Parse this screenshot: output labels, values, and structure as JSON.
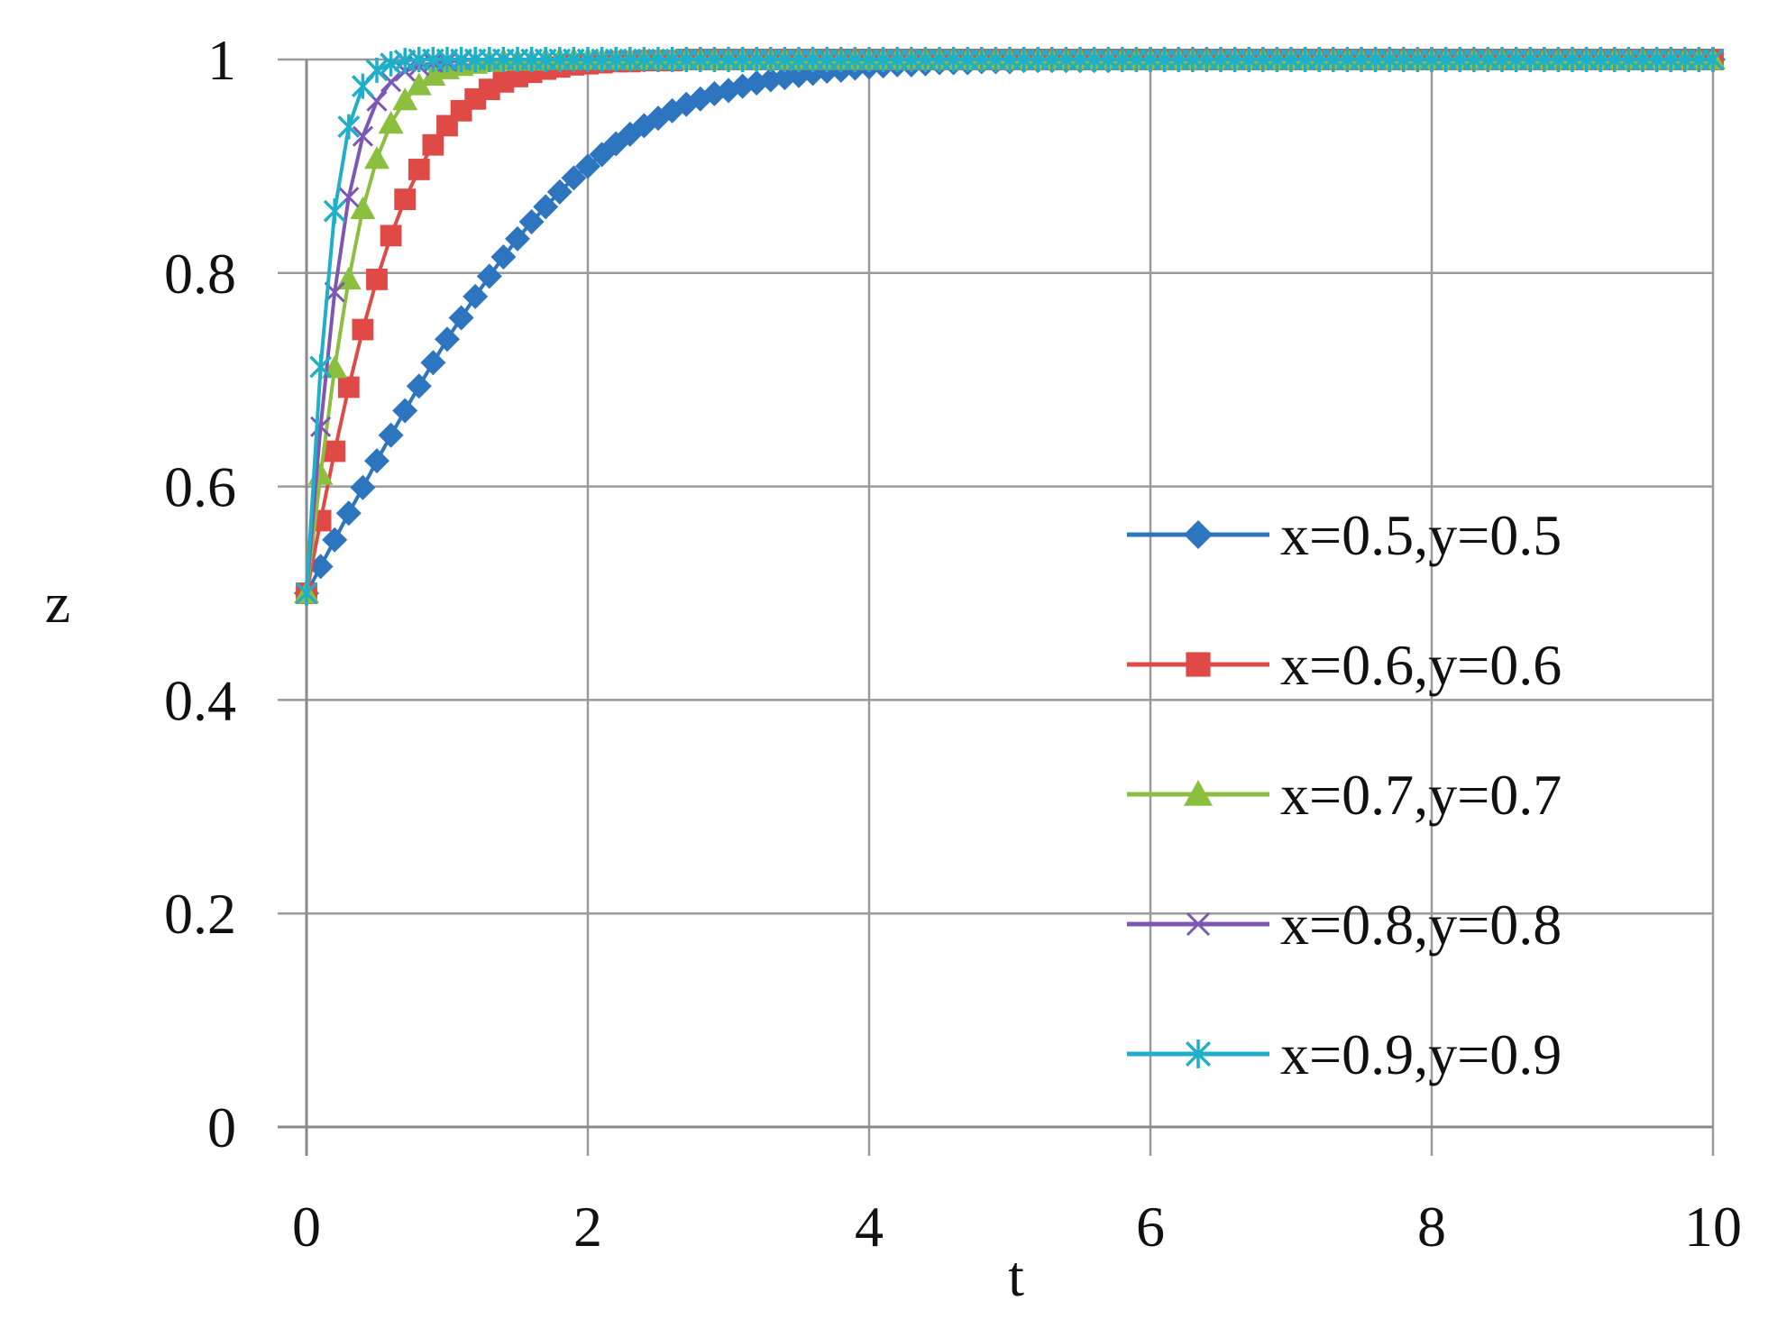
{
  "chart_data": {
    "type": "line",
    "title": "",
    "xlabel": "t",
    "ylabel": "z",
    "xlim": [
      0,
      10
    ],
    "ylim": [
      0,
      1
    ],
    "x_ticks": [
      "0",
      "2",
      "4",
      "6",
      "8",
      "10"
    ],
    "y_ticks": [
      "0",
      "0.2",
      "0.4",
      "0.6",
      "0.8",
      "1"
    ],
    "grid": true,
    "legend_position": "right",
    "x": [
      0,
      0.1,
      0.2,
      0.3,
      0.4,
      0.5,
      0.6,
      0.7,
      0.8,
      0.9,
      1.0,
      1.1,
      1.2,
      1.3,
      1.4,
      1.5,
      1.6,
      1.7,
      1.8,
      1.9,
      2.0,
      2.1,
      2.2,
      2.3,
      2.4,
      2.5,
      2.6,
      2.7,
      2.8,
      2.9,
      3.0,
      3.1,
      3.2,
      3.3,
      3.4,
      3.5,
      3.6,
      3.7,
      3.8,
      3.9,
      4.0,
      4.1,
      4.2,
      4.3,
      4.4,
      4.5,
      4.6,
      4.7,
      4.8,
      4.9,
      5.0,
      5.1,
      5.2,
      5.3,
      5.4,
      5.5,
      5.6,
      5.7,
      5.8,
      5.9,
      6.0,
      6.1,
      6.2,
      6.3,
      6.4,
      6.5,
      6.6,
      6.7,
      6.8,
      6.9,
      7.0,
      7.1,
      7.2,
      7.3,
      7.4,
      7.5,
      7.6,
      7.7,
      7.8,
      7.9,
      8.0,
      8.1,
      8.2,
      8.3,
      8.4,
      8.5,
      8.6,
      8.7,
      8.8,
      8.9,
      9.0,
      9.1,
      9.2,
      9.3,
      9.4,
      9.5,
      9.6,
      9.7,
      9.8,
      9.9,
      10.0
    ],
    "series": [
      {
        "name": "x=0.5,y=0.5",
        "color": "#2E75C0",
        "marker": "diamond",
        "values": [
          0.5,
          0.525,
          0.55,
          0.575,
          0.599,
          0.624,
          0.648,
          0.671,
          0.694,
          0.716,
          0.738,
          0.758,
          0.778,
          0.797,
          0.815,
          0.832,
          0.848,
          0.862,
          0.876,
          0.889,
          0.9,
          0.911,
          0.921,
          0.93,
          0.938,
          0.945,
          0.952,
          0.958,
          0.963,
          0.968,
          0.971,
          0.975,
          0.978,
          0.981,
          0.983,
          0.985,
          0.987,
          0.989,
          0.99,
          0.992,
          0.993,
          0.994,
          0.995,
          0.995,
          0.996,
          0.997,
          0.997,
          0.997,
          0.998,
          0.998,
          0.998,
          0.999,
          0.999,
          0.999,
          0.999,
          0.999,
          0.999,
          0.999,
          1.0,
          1.0,
          1.0,
          1.0,
          1.0,
          1.0,
          1.0,
          1.0,
          1.0,
          1.0,
          1.0,
          1.0,
          1.0,
          1.0,
          1.0,
          1.0,
          1.0,
          1.0,
          1.0,
          1.0,
          1.0,
          1.0,
          1.0,
          1.0,
          1.0,
          1.0,
          1.0,
          1.0,
          1.0,
          1.0,
          1.0,
          1.0,
          1.0,
          1.0,
          1.0,
          1.0,
          1.0,
          1.0,
          1.0,
          1.0,
          1.0,
          1.0,
          1.0
        ]
      },
      {
        "name": "x=0.6,y=0.6",
        "color": "#E04A46",
        "marker": "square",
        "values": [
          0.5,
          0.568,
          0.633,
          0.693,
          0.747,
          0.794,
          0.835,
          0.869,
          0.897,
          0.92,
          0.938,
          0.952,
          0.963,
          0.972,
          0.979,
          0.984,
          0.988,
          0.991,
          0.993,
          0.995,
          0.996,
          0.997,
          0.998,
          0.998,
          0.999,
          0.999,
          0.999,
          1.0,
          1.0,
          1.0,
          1.0,
          1.0,
          1.0,
          1.0,
          1.0,
          1.0,
          1.0,
          1.0,
          1.0,
          1.0,
          1.0,
          1.0,
          1.0,
          1.0,
          1.0,
          1.0,
          1.0,
          1.0,
          1.0,
          1.0,
          1.0,
          1.0,
          1.0,
          1.0,
          1.0,
          1.0,
          1.0,
          1.0,
          1.0,
          1.0,
          1.0,
          1.0,
          1.0,
          1.0,
          1.0,
          1.0,
          1.0,
          1.0,
          1.0,
          1.0,
          1.0,
          1.0,
          1.0,
          1.0,
          1.0,
          1.0,
          1.0,
          1.0,
          1.0,
          1.0,
          1.0,
          1.0,
          1.0,
          1.0,
          1.0,
          1.0,
          1.0,
          1.0,
          1.0,
          1.0,
          1.0,
          1.0,
          1.0,
          1.0,
          1.0,
          1.0,
          1.0,
          1.0,
          1.0,
          1.0,
          1.0
        ]
      },
      {
        "name": "x=0.7,y=0.7",
        "color": "#8CBF3F",
        "marker": "triangle",
        "values": [
          0.5,
          0.611,
          0.711,
          0.794,
          0.86,
          0.907,
          0.94,
          0.962,
          0.976,
          0.985,
          0.991,
          0.994,
          0.996,
          0.998,
          0.999,
          0.999,
          0.999,
          1.0,
          1.0,
          1.0,
          1.0,
          1.0,
          1.0,
          1.0,
          1.0,
          1.0,
          1.0,
          1.0,
          1.0,
          1.0,
          1.0,
          1.0,
          1.0,
          1.0,
          1.0,
          1.0,
          1.0,
          1.0,
          1.0,
          1.0,
          1.0,
          1.0,
          1.0,
          1.0,
          1.0,
          1.0,
          1.0,
          1.0,
          1.0,
          1.0,
          1.0,
          1.0,
          1.0,
          1.0,
          1.0,
          1.0,
          1.0,
          1.0,
          1.0,
          1.0,
          1.0,
          1.0,
          1.0,
          1.0,
          1.0,
          1.0,
          1.0,
          1.0,
          1.0,
          1.0,
          1.0,
          1.0,
          1.0,
          1.0,
          1.0,
          1.0,
          1.0,
          1.0,
          1.0,
          1.0,
          1.0,
          1.0,
          1.0,
          1.0,
          1.0,
          1.0,
          1.0,
          1.0,
          1.0,
          1.0,
          1.0,
          1.0,
          1.0,
          1.0,
          1.0,
          1.0,
          1.0,
          1.0,
          1.0,
          1.0,
          1.0
        ]
      },
      {
        "name": "x=0.8,y=0.8",
        "color": "#7E57B5",
        "marker": "x",
        "values": [
          0.5,
          0.656,
          0.782,
          0.871,
          0.928,
          0.961,
          0.979,
          0.989,
          0.994,
          0.997,
          0.998,
          0.999,
          1.0,
          1.0,
          1.0,
          1.0,
          1.0,
          1.0,
          1.0,
          1.0,
          1.0,
          1.0,
          1.0,
          1.0,
          1.0,
          1.0,
          1.0,
          1.0,
          1.0,
          1.0,
          1.0,
          1.0,
          1.0,
          1.0,
          1.0,
          1.0,
          1.0,
          1.0,
          1.0,
          1.0,
          1.0,
          1.0,
          1.0,
          1.0,
          1.0,
          1.0,
          1.0,
          1.0,
          1.0,
          1.0,
          1.0,
          1.0,
          1.0,
          1.0,
          1.0,
          1.0,
          1.0,
          1.0,
          1.0,
          1.0,
          1.0,
          1.0,
          1.0,
          1.0,
          1.0,
          1.0,
          1.0,
          1.0,
          1.0,
          1.0,
          1.0,
          1.0,
          1.0,
          1.0,
          1.0,
          1.0,
          1.0,
          1.0,
          1.0,
          1.0,
          1.0,
          1.0,
          1.0,
          1.0,
          1.0,
          1.0,
          1.0,
          1.0,
          1.0,
          1.0,
          1.0,
          1.0,
          1.0,
          1.0,
          1.0,
          1.0,
          1.0,
          1.0,
          1.0,
          1.0,
          1.0
        ]
      },
      {
        "name": "x=0.9,y=0.9",
        "color": "#1FAFC8",
        "marker": "star",
        "values": [
          0.5,
          0.712,
          0.858,
          0.937,
          0.975,
          0.99,
          0.996,
          0.999,
          1.0,
          1.0,
          1.0,
          1.0,
          1.0,
          1.0,
          1.0,
          1.0,
          1.0,
          1.0,
          1.0,
          1.0,
          1.0,
          1.0,
          1.0,
          1.0,
          1.0,
          1.0,
          1.0,
          1.0,
          1.0,
          1.0,
          1.0,
          1.0,
          1.0,
          1.0,
          1.0,
          1.0,
          1.0,
          1.0,
          1.0,
          1.0,
          1.0,
          1.0,
          1.0,
          1.0,
          1.0,
          1.0,
          1.0,
          1.0,
          1.0,
          1.0,
          1.0,
          1.0,
          1.0,
          1.0,
          1.0,
          1.0,
          1.0,
          1.0,
          1.0,
          1.0,
          1.0,
          1.0,
          1.0,
          1.0,
          1.0,
          1.0,
          1.0,
          1.0,
          1.0,
          1.0,
          1.0,
          1.0,
          1.0,
          1.0,
          1.0,
          1.0,
          1.0,
          1.0,
          1.0,
          1.0,
          1.0,
          1.0,
          1.0,
          1.0,
          1.0,
          1.0,
          1.0,
          1.0,
          1.0,
          1.0,
          1.0,
          1.0,
          1.0,
          1.0,
          1.0,
          1.0,
          1.0,
          1.0,
          1.0,
          1.0,
          1.0
        ]
      }
    ]
  }
}
